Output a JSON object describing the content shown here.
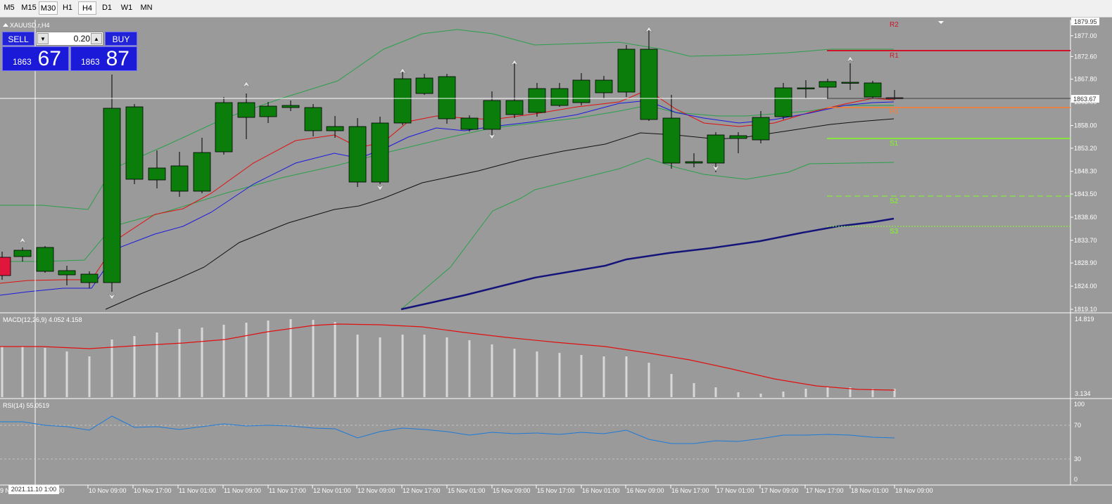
{
  "toolbar": {
    "timeframes": [
      "M5",
      "M15",
      "M30",
      "H1",
      "H4",
      "D1",
      "W1",
      "MN"
    ],
    "selected": [
      "M30",
      "H4"
    ]
  },
  "chart": {
    "title": "XAUUSD.r,H4",
    "price_scale": [
      "1879.95",
      "1877.00",
      "1872.60",
      "1867.80",
      "1863.00",
      "1858.00",
      "1853.20",
      "1848.30",
      "1843.50",
      "1838.60",
      "1833.70",
      "1828.90",
      "1824.00",
      "1819.10"
    ],
    "current_price": "1863.67",
    "time_labels": [
      "9 N",
      "v 01:00",
      "10 Nov 09:00",
      "10 Nov 17:00",
      "11 Nov 01:00",
      "11 Nov 09:00",
      "11 Nov 17:00",
      "12 Nov 01:00",
      "12 Nov 09:00",
      "12 Nov 17:00",
      "15 Nov 01:00",
      "15 Nov 09:00",
      "15 Nov 17:00",
      "16 Nov 01:00",
      "16 Nov 09:00",
      "16 Nov 17:00",
      "17 Nov 01:00",
      "17 Nov 09:00",
      "17 Nov 17:00",
      "18 Nov 01:00",
      "18 Nov 09:00"
    ],
    "crosshair_date": "2021.11.10 1:00",
    "pivot_labels": [
      "R2",
      "R1",
      "P0",
      "S1",
      "S2",
      "S3"
    ],
    "macd": {
      "label": "MACD(12,26,9) 4.052 4.158",
      "scale_top": "14.819",
      "scale_bottom": "3.134"
    },
    "rsi": {
      "label": "RSI(14) 55.0519",
      "levels": [
        "100",
        "70",
        "30",
        "0"
      ]
    },
    "colors": {
      "background": "#9a9a9a",
      "bull": "#0a7d0a",
      "bear": "#e0163c",
      "ma_red": "#e01010",
      "ma_blue": "#1a1ae0",
      "ma_black": "#111111",
      "ma_navy": "#14147a",
      "bands": "#2aa04a",
      "rsi": "#1e7ad8",
      "r_lines": "#d0142a",
      "p_line": "#ff7a2a",
      "s_lines": "#80ff20"
    }
  },
  "one_click": {
    "sell_label": "SELL",
    "buy_label": "BUY",
    "lot": "0.20",
    "sell_small": "1863",
    "sell_big": "67",
    "buy_small": "1863",
    "buy_big": "87"
  }
}
